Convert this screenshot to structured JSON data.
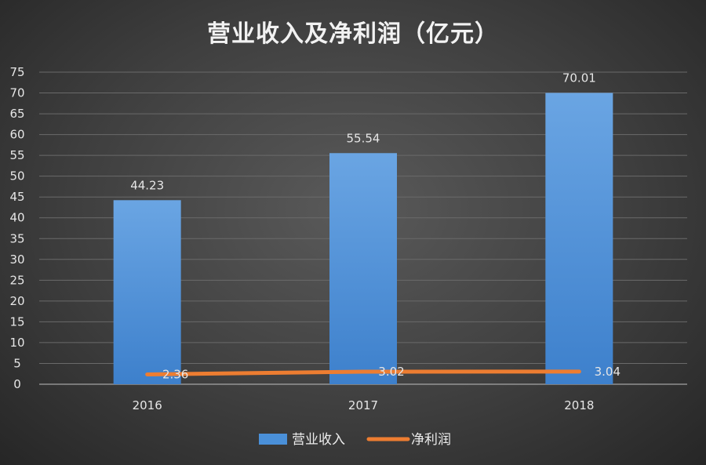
{
  "chart_data": {
    "type": "bar",
    "title": "营业收入及净利润（亿元）",
    "categories": [
      "2016",
      "2017",
      "2018"
    ],
    "series": [
      {
        "name": "营业收入",
        "type": "bar",
        "color": "#4a90d9",
        "values": [
          44.23,
          55.54,
          70.01
        ]
      },
      {
        "name": "净利润",
        "type": "line",
        "color": "#ed7d31",
        "values": [
          2.36,
          3.02,
          3.04
        ]
      }
    ],
    "ylim": [
      0,
      75
    ],
    "yticks": [
      0,
      5,
      10,
      15,
      20,
      25,
      30,
      35,
      40,
      45,
      50,
      55,
      60,
      65,
      70,
      75
    ],
    "grid": true,
    "legend_position": "bottom",
    "data_labels": true
  }
}
